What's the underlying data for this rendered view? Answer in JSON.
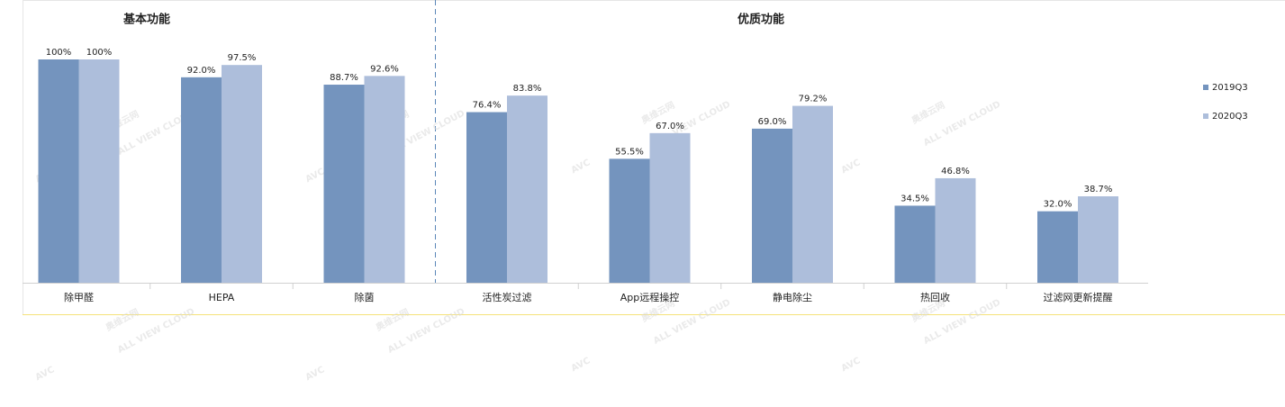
{
  "chart_data": {
    "type": "bar",
    "section_titles": [
      "基本功能",
      "优质功能"
    ],
    "categories": [
      "除甲醛",
      "HEPA",
      "除菌",
      "活性炭过滤",
      "App远程操控",
      "静电除尘",
      "热回收",
      "过滤网更新提醒"
    ],
    "series": [
      {
        "name": "2019Q3",
        "color": "#7494be",
        "values": [
          100,
          92.0,
          88.7,
          76.4,
          55.5,
          69.0,
          34.5,
          32.0
        ],
        "value_labels": [
          "100%",
          "92.0%",
          "88.7%",
          "76.4%",
          "55.5%",
          "69.0%",
          "34.5%",
          "32.0%"
        ]
      },
      {
        "name": "2020Q3",
        "color": "#adbedb",
        "values": [
          100,
          97.5,
          92.6,
          83.8,
          67.0,
          79.2,
          46.8,
          38.7
        ],
        "value_labels": [
          "100%",
          "97.5%",
          "92.6%",
          "83.8%",
          "67.0%",
          "79.2%",
          "46.8%",
          "38.7%"
        ]
      }
    ],
    "legend": "right",
    "watermark": {
      "logo": "AVC",
      "text": "奥维云网",
      "subtext": "ALL VIEW CLOUD"
    }
  }
}
